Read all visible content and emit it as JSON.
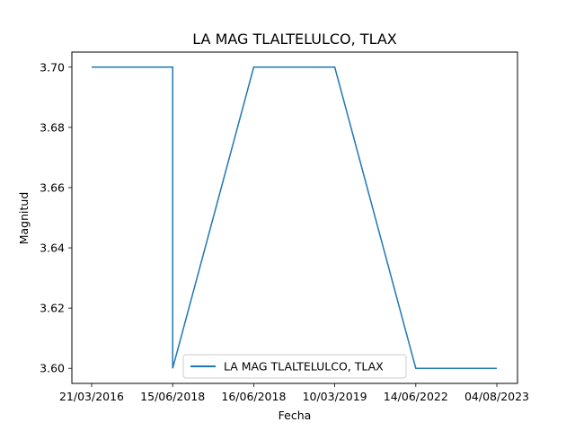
{
  "chart_data": {
    "type": "line",
    "title": "LA MAG TLALTELULCO, TLAX",
    "xlabel": "Fecha",
    "ylabel": "Magnitud",
    "x_categories": [
      "21/03/2016",
      "15/06/2018",
      "15/06/2018",
      "16/06/2018",
      "10/03/2019",
      "14/06/2022",
      "04/08/2023"
    ],
    "x_ticks": [
      "21/03/2016",
      "15/06/2018",
      "16/06/2018",
      "10/03/2019",
      "14/06/2022",
      "04/08/2023"
    ],
    "series": [
      {
        "name": "LA MAG TLALTELULCO, TLAX",
        "color": "#1f77b4",
        "points": [
          {
            "x": "21/03/2016",
            "y": 3.7
          },
          {
            "x": "15/06/2018",
            "y": 3.7
          },
          {
            "x": "15/06/2018",
            "y": 3.6
          },
          {
            "x": "16/06/2018",
            "y": 3.7
          },
          {
            "x": "10/03/2019",
            "y": 3.7
          },
          {
            "x": "14/06/2022",
            "y": 3.6
          },
          {
            "x": "04/08/2023",
            "y": 3.6
          }
        ]
      }
    ],
    "y_ticks": [
      "3.60",
      "3.62",
      "3.64",
      "3.66",
      "3.68",
      "3.70"
    ],
    "ylim": [
      3.595,
      3.705
    ],
    "grid": false,
    "legend_position": "lower-center"
  }
}
